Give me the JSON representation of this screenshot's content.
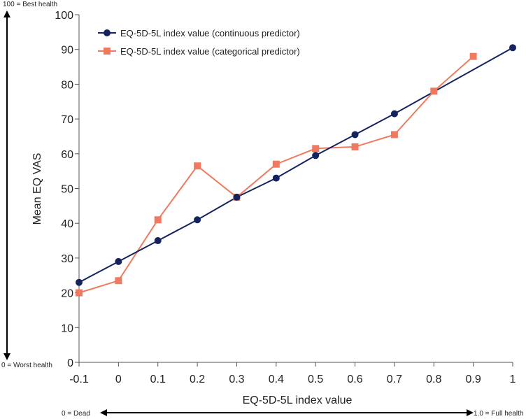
{
  "chart_data": {
    "type": "line",
    "title": "",
    "xlabel": "EQ-5D-5L index value",
    "ylabel": "Mean EQ VAS",
    "xlim": [
      -0.1,
      1
    ],
    "ylim": [
      0,
      100
    ],
    "x_tick_labels": [
      "-0.1",
      "0",
      "0.1",
      "0.2",
      "0.3",
      "0.4",
      "0.5",
      "0.6",
      "0.7",
      "0.8",
      "0.9",
      "1"
    ],
    "x_ticks": [
      -0.1,
      0,
      0.1,
      0.2,
      0.3,
      0.4,
      0.5,
      0.6,
      0.7,
      0.8,
      0.9,
      1
    ],
    "y_tick_labels": [
      "0",
      "10",
      "20",
      "30",
      "40",
      "50",
      "60",
      "70",
      "80",
      "90",
      "100"
    ],
    "y_ticks": [
      0,
      10,
      20,
      30,
      40,
      50,
      60,
      70,
      80,
      90,
      100
    ],
    "grid": false,
    "legend_position": "top-left",
    "series": [
      {
        "name": "EQ-5D-5L index value (continuous predictor)",
        "color": "#14235e",
        "marker": "circle",
        "x": [
          -0.1,
          0,
          0.1,
          0.2,
          0.3,
          0.4,
          0.5,
          0.6,
          0.7,
          1
        ],
        "y": [
          23,
          29,
          35,
          41,
          47.5,
          53,
          59.5,
          65.5,
          71.5,
          90.5
        ]
      },
      {
        "name": "EQ-5D-5L index value (categorical predictor)",
        "color": "#f07a5f",
        "marker": "square",
        "x": [
          -0.1,
          0,
          0.1,
          0.2,
          0.3,
          0.4,
          0.5,
          0.6,
          0.7,
          0.8,
          0.9
        ],
        "y": [
          20,
          23.5,
          41,
          56.5,
          47.5,
          57,
          61.5,
          62,
          65.5,
          78,
          88
        ]
      }
    ],
    "annotations": {
      "y_top": "100 = Best health",
      "y_bottom": "0 = Worst health",
      "x_left": "0 = Dead",
      "x_right": "1.0 = Full health"
    }
  }
}
